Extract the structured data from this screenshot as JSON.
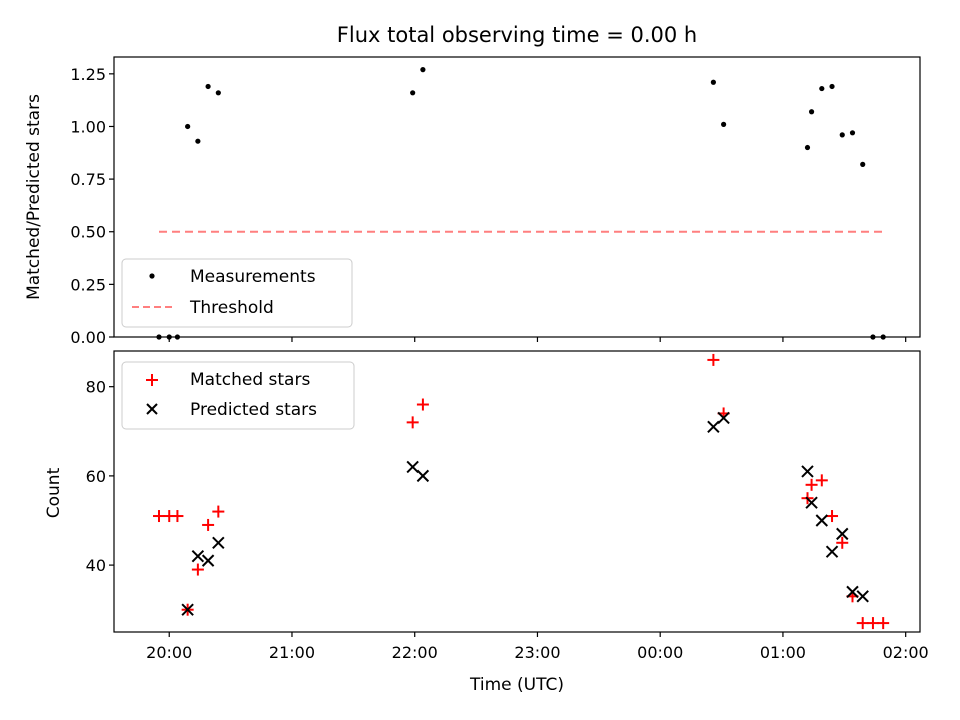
{
  "chart_data": [
    {
      "type": "scatter",
      "title": "Flux total observing time = 0.00 h",
      "xlabel": "",
      "ylabel": "Matched/Predicted stars",
      "xlim": [
        "19:33",
        "02:07"
      ],
      "ylim": [
        0,
        1.33
      ],
      "yticks": [
        "0.00",
        "0.25",
        "0.50",
        "0.75",
        "1.00",
        "1.25"
      ],
      "xticks": [
        "20:00",
        "21:00",
        "22:00",
        "23:00",
        "00:00",
        "01:00",
        "02:00"
      ],
      "grid": false,
      "legend_position": "lower-left",
      "series": [
        {
          "name": "Measurements",
          "kind": "points",
          "color": "#000000",
          "x": [
            "19:55",
            "20:00",
            "20:04",
            "20:09",
            "20:14",
            "20:19",
            "20:24",
            "21:59",
            "22:04",
            "00:26",
            "00:31",
            "01:12",
            "01:14",
            "01:19",
            "01:24",
            "01:29",
            "01:34",
            "01:39",
            "01:44",
            "01:49"
          ],
          "y": [
            0.0,
            0.0,
            0.0,
            1.0,
            0.93,
            1.19,
            1.16,
            1.16,
            1.27,
            1.21,
            1.01,
            0.9,
            1.07,
            1.18,
            1.19,
            0.96,
            0.97,
            0.82,
            0.0,
            0.0
          ]
        },
        {
          "name": "Threshold",
          "kind": "dashed-line",
          "color": "#ff7f7f",
          "x": [
            "19:55",
            "01:49"
          ],
          "y": [
            0.5,
            0.5
          ]
        }
      ]
    },
    {
      "type": "scatter",
      "title": "",
      "xlabel": "Time (UTC)",
      "ylabel": "Count",
      "xlim": [
        "19:33",
        "02:07"
      ],
      "ylim": [
        25,
        88
      ],
      "yticks": [
        "40",
        "60",
        "80"
      ],
      "xticks": [
        "20:00",
        "21:00",
        "22:00",
        "23:00",
        "00:00",
        "01:00",
        "02:00"
      ],
      "grid": false,
      "legend_position": "upper-left",
      "series": [
        {
          "name": "Matched stars",
          "marker": "plus",
          "color": "#ff0000",
          "x": [
            "19:55",
            "20:00",
            "20:04",
            "20:09",
            "20:14",
            "20:19",
            "20:24",
            "21:59",
            "22:04",
            "00:26",
            "00:31",
            "01:12",
            "01:14",
            "01:19",
            "01:24",
            "01:29",
            "01:34",
            "01:39",
            "01:44",
            "01:49"
          ],
          "y": [
            51,
            51,
            51,
            30,
            39,
            49,
            52,
            72,
            76,
            86,
            74,
            55,
            58,
            59,
            51,
            45,
            33,
            27,
            27,
            27
          ]
        },
        {
          "name": "Predicted stars",
          "marker": "x",
          "color": "#000000",
          "x": [
            "20:09",
            "20:14",
            "20:19",
            "20:24",
            "21:59",
            "22:04",
            "00:26",
            "00:31",
            "01:12",
            "01:14",
            "01:19",
            "01:24",
            "01:29",
            "01:34",
            "01:39"
          ],
          "y": [
            30,
            42,
            41,
            45,
            62,
            60,
            71,
            73,
            61,
            54,
            50,
            43,
            47,
            34,
            33
          ]
        }
      ]
    }
  ]
}
